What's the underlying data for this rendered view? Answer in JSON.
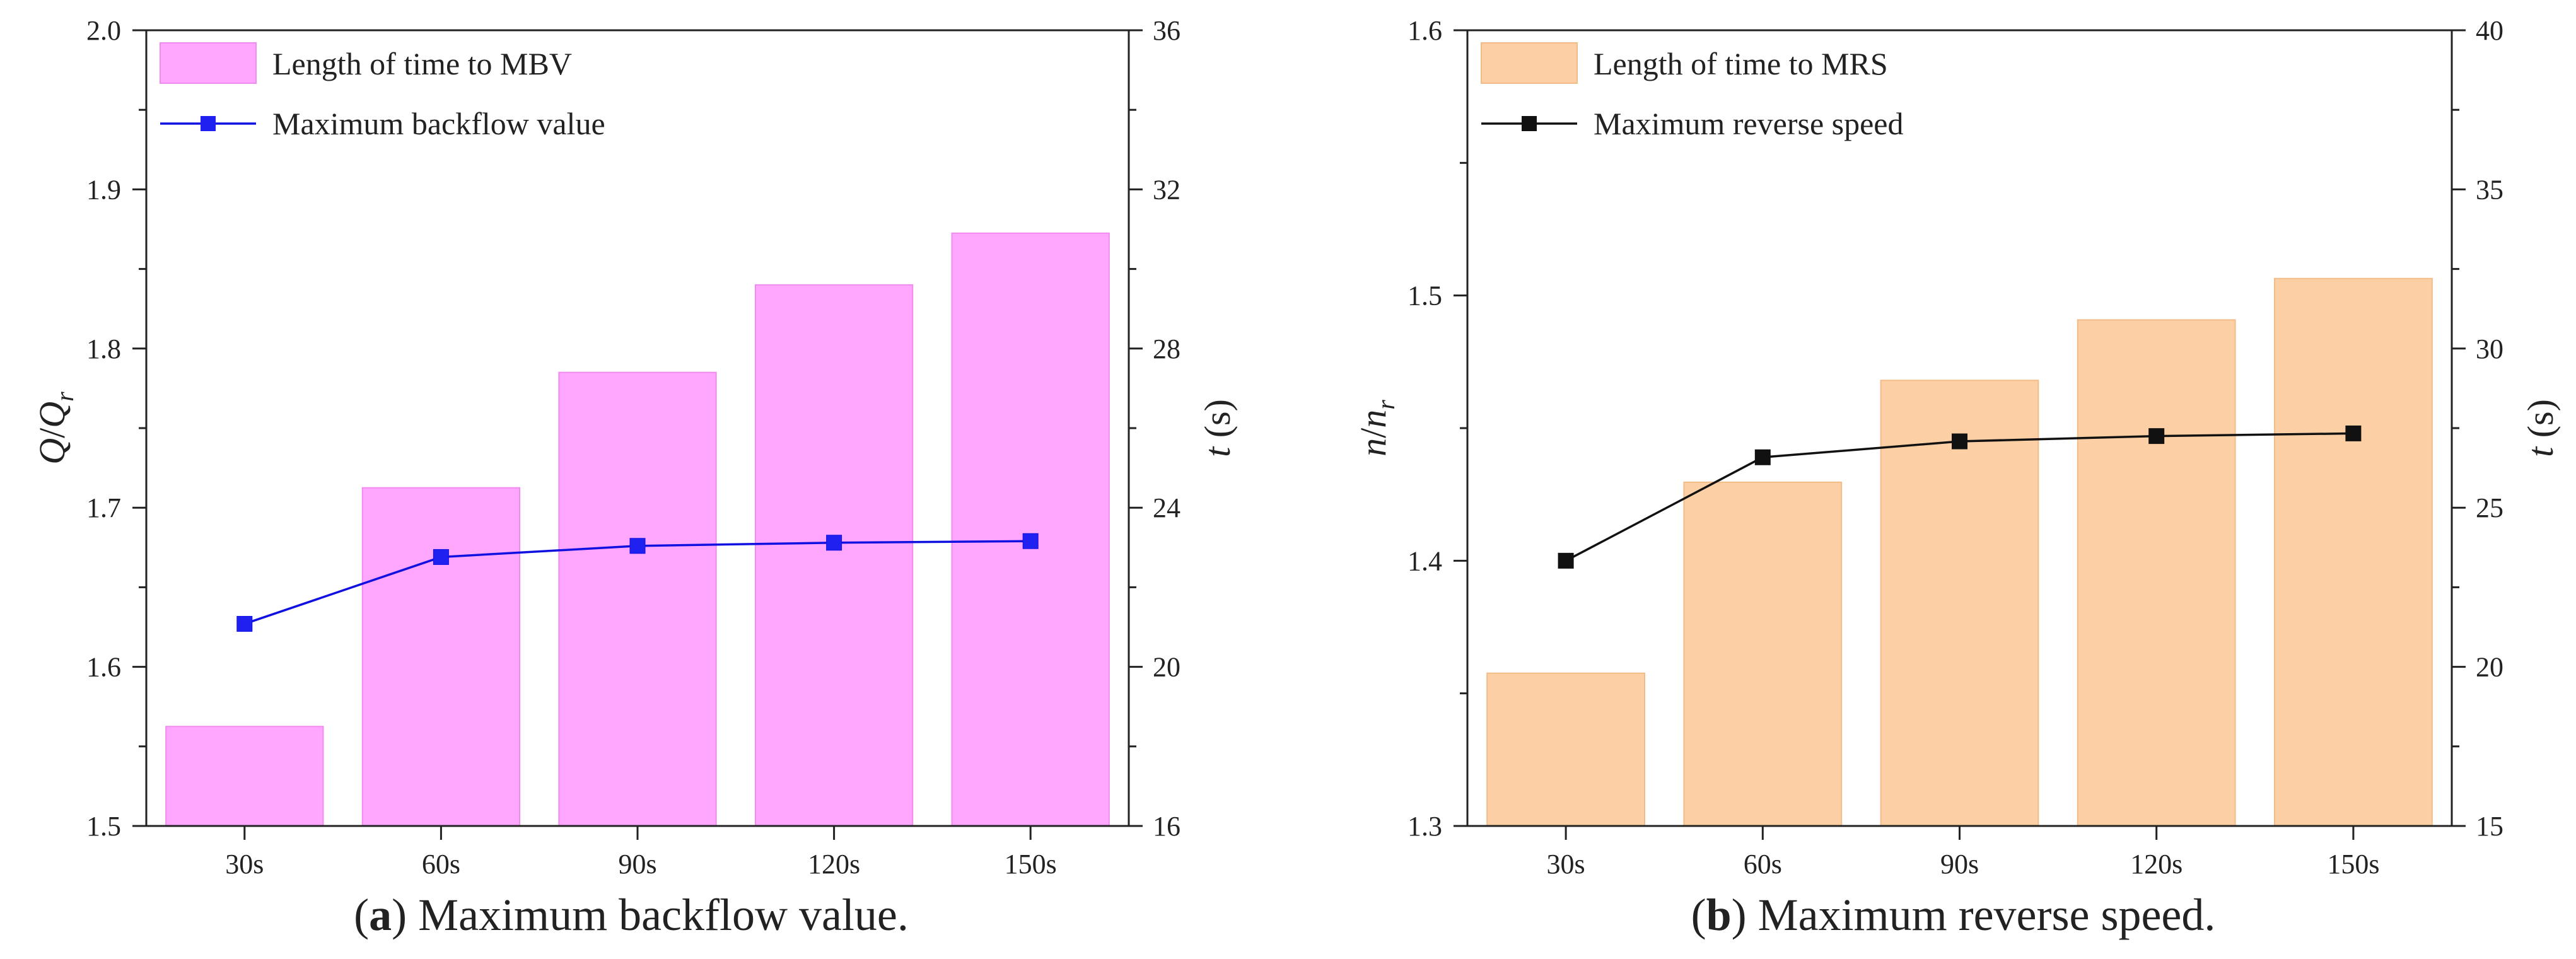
{
  "chart_data": [
    {
      "type": "bar+line",
      "panel_label": "a",
      "caption": "Maximum backflow value.",
      "categories": [
        "30s",
        "60s",
        "90s",
        "120s",
        "150s"
      ],
      "left_axis": {
        "label_main": "Q",
        "label_sep": "/",
        "label_sub_base": "Q",
        "label_sub": "r",
        "ylim": [
          1.5,
          2.0
        ],
        "ticks": [
          "1.5",
          "1.6",
          "1.7",
          "1.8",
          "1.9",
          "2.0"
        ]
      },
      "right_axis": {
        "label_italic": "t",
        "label_unit": " (s)",
        "ylim": [
          16,
          36
        ],
        "ticks": [
          "16",
          "20",
          "24",
          "28",
          "32",
          "36"
        ]
      },
      "bar_series": {
        "name": "Length of time to MBV",
        "axis": "right",
        "color": "#FFA6FF",
        "edge_color": "#F08CF0",
        "values": [
          18.5,
          24.5,
          27.4,
          29.6,
          30.9
        ]
      },
      "line_series": {
        "name": "Maximum backflow value",
        "axis": "left",
        "color": "#1010E0",
        "marker_color": "#2020F0",
        "values": [
          1.627,
          1.669,
          1.676,
          1.678,
          1.679
        ]
      }
    },
    {
      "type": "bar+line",
      "panel_label": "b",
      "caption": "Maximum reverse speed.",
      "categories": [
        "30s",
        "60s",
        "90s",
        "120s",
        "150s"
      ],
      "left_axis": {
        "label_main": "n",
        "label_sep": "/",
        "label_sub_base": "n",
        "label_sub": "r",
        "ylim": [
          1.3,
          1.6
        ],
        "ticks": [
          "1.3",
          "1.4",
          "1.5",
          "1.6"
        ]
      },
      "right_axis": {
        "label_italic": "t",
        "label_unit": " (s)",
        "ylim": [
          15,
          40
        ],
        "ticks": [
          "15",
          "20",
          "25",
          "30",
          "35",
          "40"
        ]
      },
      "bar_series": {
        "name": "Length of time to MRS",
        "axis": "right",
        "color": "#FCD0A4",
        "edge_color": "#F2BC88",
        "values": [
          19.8,
          25.8,
          29.0,
          30.9,
          32.2
        ]
      },
      "line_series": {
        "name": "Maximum reverse speed",
        "axis": "left",
        "color": "#111111",
        "marker_color": "#111111",
        "values": [
          1.4,
          1.439,
          1.445,
          1.447,
          1.448
        ]
      }
    }
  ]
}
